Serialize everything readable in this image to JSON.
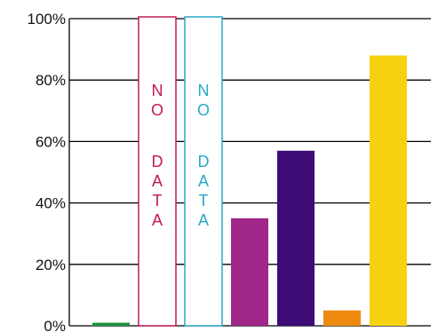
{
  "chart_data": {
    "type": "bar",
    "title": "",
    "xlabel": "",
    "ylabel": "",
    "ylim": [
      0,
      100
    ],
    "y_ticks": [
      "0%",
      "20%",
      "40%",
      "60%",
      "80%",
      "100%"
    ],
    "y_tick_values": [
      0,
      20,
      40,
      60,
      80,
      100
    ],
    "grid": true,
    "bars": [
      {
        "value": 1,
        "color": "#1a9641",
        "no_data": false
      },
      {
        "value": null,
        "color": "#c2185b",
        "no_data": true,
        "label": "NO DATA"
      },
      {
        "value": null,
        "color": "#29a8c8",
        "no_data": true,
        "label": "NO DATA"
      },
      {
        "value": 35,
        "color": "#a0278a",
        "no_data": false
      },
      {
        "value": 57,
        "color": "#3d0c76",
        "no_data": false
      },
      {
        "value": 5,
        "color": "#ef8a10",
        "no_data": false
      },
      {
        "value": 88,
        "color": "#f6d10f",
        "no_data": false
      }
    ]
  }
}
